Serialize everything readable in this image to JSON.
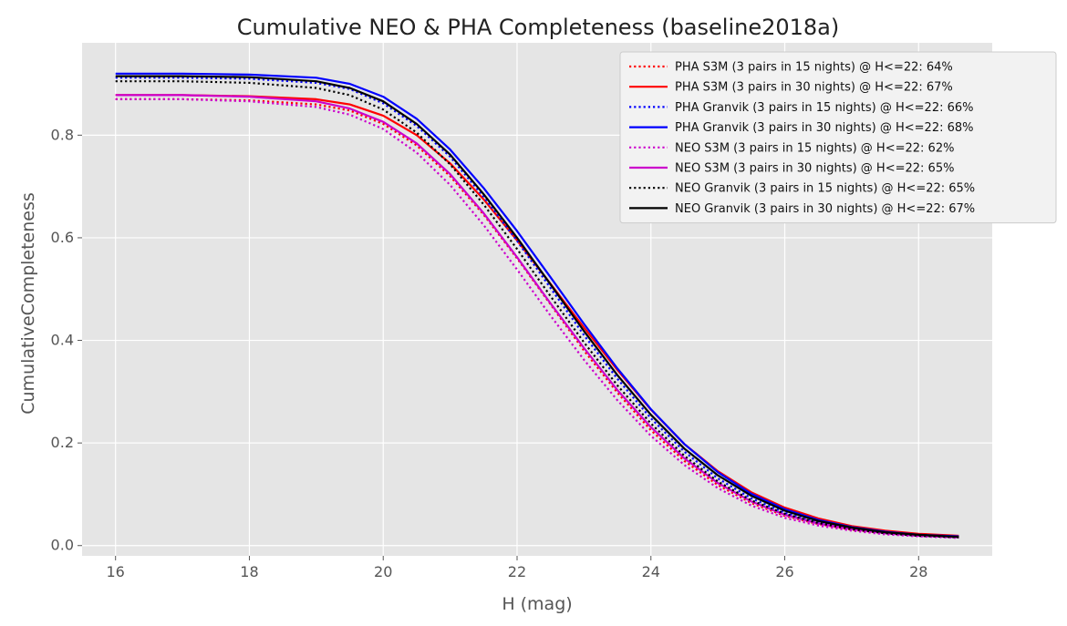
{
  "chart_data": {
    "type": "line",
    "title": "Cumulative NEO & PHA Completeness (baseline2018a)",
    "xlabel": "H (mag)",
    "ylabel": "CumulativeCompleteness",
    "xlim": [
      15.5,
      29.1
    ],
    "ylim": [
      -0.02,
      0.98
    ],
    "xticks": [
      16,
      18,
      20,
      22,
      24,
      26,
      28
    ],
    "yticks": [
      0.0,
      0.2,
      0.4,
      0.6,
      0.8
    ],
    "x": [
      16.0,
      17.0,
      18.0,
      19.0,
      19.5,
      20.0,
      20.5,
      21.0,
      21.5,
      22.0,
      22.5,
      23.0,
      23.5,
      24.0,
      24.5,
      25.0,
      25.5,
      26.0,
      26.5,
      27.0,
      27.5,
      28.0,
      28.6
    ],
    "grid": true,
    "background": "#e5e5e5",
    "legend_position": "top-right",
    "series": [
      {
        "name": "PHA S3M (3 pairs in 15 nights) @ H<=22: 64%",
        "color": "#ff0000",
        "style": "dotted",
        "values": [
          0.87,
          0.87,
          0.868,
          0.86,
          0.848,
          0.822,
          0.78,
          0.72,
          0.645,
          0.56,
          0.47,
          0.38,
          0.298,
          0.225,
          0.165,
          0.118,
          0.083,
          0.058,
          0.042,
          0.031,
          0.024,
          0.02,
          0.017
        ]
      },
      {
        "name": "PHA S3M (3 pairs in 30 nights) @ H<=22: 67%",
        "color": "#ff0000",
        "style": "solid",
        "values": [
          0.878,
          0.878,
          0.876,
          0.87,
          0.86,
          0.838,
          0.8,
          0.745,
          0.675,
          0.595,
          0.51,
          0.425,
          0.342,
          0.265,
          0.198,
          0.145,
          0.104,
          0.074,
          0.053,
          0.038,
          0.029,
          0.023,
          0.019
        ]
      },
      {
        "name": "PHA Granvik (3 pairs in 15 nights) @ H<=22: 66%",
        "color": "#0000ff",
        "style": "dotted",
        "values": [
          0.912,
          0.912,
          0.91,
          0.902,
          0.89,
          0.862,
          0.818,
          0.758,
          0.68,
          0.594,
          0.502,
          0.41,
          0.325,
          0.248,
          0.183,
          0.131,
          0.092,
          0.064,
          0.046,
          0.033,
          0.025,
          0.02,
          0.016
        ]
      },
      {
        "name": "PHA Granvik (3 pairs in 30 nights) @ H<=22: 68%",
        "color": "#0000ff",
        "style": "solid",
        "values": [
          0.92,
          0.92,
          0.918,
          0.912,
          0.9,
          0.875,
          0.832,
          0.772,
          0.697,
          0.613,
          0.523,
          0.432,
          0.345,
          0.266,
          0.198,
          0.143,
          0.101,
          0.071,
          0.05,
          0.036,
          0.027,
          0.021,
          0.018
        ]
      },
      {
        "name": "NEO S3M (3 pairs in 15 nights) @ H<=22: 62%",
        "color": "#cc00cc",
        "style": "dotted",
        "values": [
          0.87,
          0.87,
          0.866,
          0.855,
          0.84,
          0.812,
          0.766,
          0.703,
          0.625,
          0.538,
          0.448,
          0.362,
          0.283,
          0.214,
          0.157,
          0.112,
          0.078,
          0.054,
          0.039,
          0.029,
          0.022,
          0.018,
          0.015
        ]
      },
      {
        "name": "NEO S3M (3 pairs in 30 nights) @ H<=22: 65%",
        "color": "#cc00cc",
        "style": "solid",
        "values": [
          0.878,
          0.878,
          0.875,
          0.866,
          0.852,
          0.826,
          0.784,
          0.724,
          0.648,
          0.562,
          0.472,
          0.385,
          0.303,
          0.231,
          0.17,
          0.122,
          0.086,
          0.06,
          0.043,
          0.032,
          0.024,
          0.019,
          0.016
        ]
      },
      {
        "name": "NEO Granvik (3 pairs in 15 nights) @ H<=22: 65%",
        "color": "#000000",
        "style": "dotted",
        "values": [
          0.905,
          0.905,
          0.902,
          0.892,
          0.878,
          0.85,
          0.805,
          0.743,
          0.665,
          0.578,
          0.486,
          0.396,
          0.312,
          0.238,
          0.175,
          0.125,
          0.088,
          0.062,
          0.044,
          0.032,
          0.024,
          0.019,
          0.016
        ]
      },
      {
        "name": "NEO Granvik (3 pairs in 30 nights) @ H<=22: 67%",
        "color": "#000000",
        "style": "solid",
        "values": [
          0.915,
          0.915,
          0.913,
          0.905,
          0.892,
          0.866,
          0.822,
          0.762,
          0.685,
          0.6,
          0.509,
          0.418,
          0.332,
          0.255,
          0.189,
          0.137,
          0.097,
          0.068,
          0.048,
          0.035,
          0.026,
          0.021,
          0.017
        ]
      }
    ]
  }
}
